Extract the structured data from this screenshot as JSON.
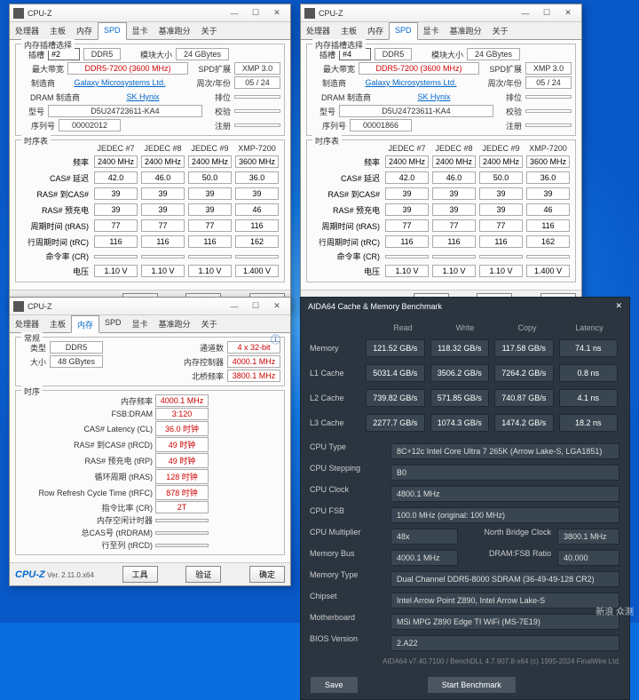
{
  "cpuz": {
    "title": "CPU-Z",
    "logo": "CPU-Z",
    "ver": "Ver. 2.11.0.x64",
    "buttons": {
      "tools": "工具",
      "verify": "验证",
      "ok": "确定"
    },
    "tabs": [
      "处理器",
      "主板",
      "内存",
      "SPD",
      "显卡",
      "基准跑分",
      "关于"
    ],
    "wctrl": {
      "min": "—",
      "max": "☐",
      "close": "✕"
    }
  },
  "spd": {
    "section1": "内存插槽选择",
    "section2": "时序表",
    "slot_lbl": "插槽",
    "type": "DDR5",
    "mod_size_lbl": "模块大小",
    "mod_size": "24 GBytes",
    "max_lbl": "最大带宽",
    "max": "DDR5-7200 (3600 MHz)",
    "spd_ext_lbl": "SPD扩展",
    "spd_ext": "XMP 3.0",
    "manuf_lbl": "制造商",
    "manuf": "Galaxy Microsystems Ltd.",
    "week_lbl": "周次/年份",
    "week": "05 / 24",
    "dram_lbl": "DRAM 制造商",
    "dram": "SK Hynix",
    "ranks_lbl": "排位",
    "part_lbl": "型号",
    "part": "D5U24723611-KA4",
    "correct_lbl": "校验",
    "serial_lbl": "序列号",
    "reg_lbl": "注册",
    "slots": {
      "a": "#2",
      "b": "#4"
    },
    "serials": {
      "a": "00002012",
      "b": "00001866"
    },
    "cols": [
      "JEDEC #7",
      "JEDEC #8",
      "JEDEC #9",
      "XMP-7200"
    ],
    "rows": [
      {
        "l": "频率",
        "v": [
          "2400 MHz",
          "2400 MHz",
          "2400 MHz",
          "3600 MHz"
        ]
      },
      {
        "l": "CAS# 延迟",
        "v": [
          "42.0",
          "46.0",
          "50.0",
          "36.0"
        ]
      },
      {
        "l": "RAS# 到CAS#",
        "v": [
          "39",
          "39",
          "39",
          "39"
        ]
      },
      {
        "l": "RAS# 预充电",
        "v": [
          "39",
          "39",
          "39",
          "46"
        ]
      },
      {
        "l": "周期时间 (tRAS)",
        "v": [
          "77",
          "77",
          "77",
          "116"
        ]
      },
      {
        "l": "行周期时间 (tRC)",
        "v": [
          "116",
          "116",
          "116",
          "162"
        ]
      },
      {
        "l": "命令率 (CR)",
        "v": [
          "",
          "",
          "",
          ""
        ]
      },
      {
        "l": "电压",
        "v": [
          "1.10 V",
          "1.10 V",
          "1.10 V",
          "1.400 V"
        ]
      }
    ]
  },
  "mem": {
    "section1": "常规",
    "section2": "时序",
    "info_icon": "ⓘ",
    "type_lbl": "类型",
    "type": "DDR5",
    "ch_lbl": "通道数",
    "ch": "4 x 32-bit",
    "size_lbl": "大小",
    "size": "48 GBytes",
    "mc_lbl": "内存控制器",
    "mc": "4000.1 MHz",
    "nb_lbl": "北桥频率",
    "nb": "3800.1 MHz",
    "rows": [
      {
        "l": "内存频率",
        "v": "4000.1 MHz"
      },
      {
        "l": "FSB:DRAM",
        "v": "3:120"
      },
      {
        "l": "CAS# Latency (CL)",
        "v": "36.0 时钟"
      },
      {
        "l": "RAS# 到CAS# (tRCD)",
        "v": "49 时钟"
      },
      {
        "l": "RAS# 预充电 (tRP)",
        "v": "49 时钟"
      },
      {
        "l": "循环周期 (tRAS)",
        "v": "128 时钟"
      },
      {
        "l": "Row Refresh Cycle Time (tRFC)",
        "v": "878 时钟"
      },
      {
        "l": "指令比率 (CR)",
        "v": "2T"
      },
      {
        "l": "内存空闲计时器",
        "v": ""
      },
      {
        "l": "总CAS号 (tRDRAM)",
        "v": ""
      },
      {
        "l": "行至列 (tRCD)",
        "v": ""
      }
    ]
  },
  "aida": {
    "title": "AIDA64 Cache & Memory Benchmark",
    "close": "✕",
    "cols": [
      "Read",
      "Write",
      "Copy",
      "Latency"
    ],
    "bench": [
      {
        "l": "Memory",
        "v": [
          "121.52 GB/s",
          "118.32 GB/s",
          "117.58 GB/s",
          "74.1 ns"
        ]
      },
      {
        "l": "L1 Cache",
        "v": [
          "5031.4 GB/s",
          "3506.2 GB/s",
          "7264.2 GB/s",
          "0.8 ns"
        ]
      },
      {
        "l": "L2 Cache",
        "v": [
          "739.82 GB/s",
          "571.85 GB/s",
          "740.87 GB/s",
          "4.1 ns"
        ]
      },
      {
        "l": "L3 Cache",
        "v": [
          "2277.7 GB/s",
          "1074.3 GB/s",
          "1474.2 GB/s",
          "18.2 ns"
        ]
      }
    ],
    "info": [
      {
        "k": "CPU Type",
        "v": "8C+12c Intel Core Ultra 7 265K  (Arrow Lake-S, LGA1851)"
      },
      {
        "k": "CPU Stepping",
        "v": "B0"
      },
      {
        "k": "CPU Clock",
        "v": "4800.1 MHz"
      },
      {
        "k": "CPU FSB",
        "v": "100.0 MHz   (original: 100 MHz)"
      },
      {
        "k": "CPU Multiplier",
        "v": "48x",
        "extra_k": "North Bridge Clock",
        "extra_v": "3800.1 MHz"
      },
      {
        "k": "Memory Bus",
        "v": "4000.1 MHz",
        "extra_k": "DRAM:FSB Ratio",
        "extra_v": "40.000"
      },
      {
        "k": "Memory Type",
        "v": "Dual Channel DDR5-8000 SDRAM  (36-49-49-128 CR2)"
      },
      {
        "k": "Chipset",
        "v": "Intel Arrow Point Z890, Intel Arrow Lake-S"
      },
      {
        "k": "Motherboard",
        "v": "MSi MPG Z890 Edge TI WiFi (MS-7E19)"
      },
      {
        "k": "BIOS Version",
        "v": "2.A22"
      }
    ],
    "save": "Save",
    "start": "Start Benchmark",
    "copyright": "AIDA64 v7.40.7100 / BenchDLL 4.7.907.8-x64   (c) 1995-2024 FinalWire Ltd."
  },
  "watermark": "新浪\n众测"
}
